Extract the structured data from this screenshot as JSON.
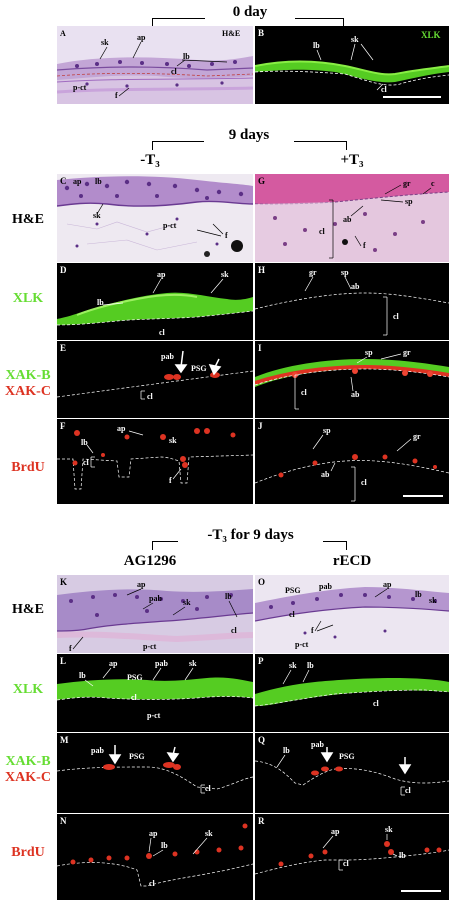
{
  "titles": {
    "day0": "0 day",
    "nine_days": "9 days",
    "minus_t3_9": "-T₃ for 9 days"
  },
  "column_heads": {
    "minus_t3": "-T₃",
    "plus_t3": "+T₃",
    "ag1296": "AG1296",
    "recd": "rECD"
  },
  "row_labels": {
    "he": "H&E",
    "xlk": "XLK",
    "xak_b": "XAK-B",
    "xak_c": "XAK-C",
    "brdu": "BrdU"
  },
  "colors": {
    "xlk": "#66dd33",
    "xak_c": "#dd3322",
    "brdu": "#dd3322",
    "he_bg": "#e6dcef",
    "dark_bg": "#000000"
  },
  "panels": {
    "A": {
      "letter": "A",
      "tag": "H&E",
      "labels": [
        "sk",
        "ap",
        "lb",
        "cl",
        "p-ct",
        "f"
      ]
    },
    "B": {
      "letter": "B",
      "tag": "XLK",
      "labels": [
        "lb",
        "sk",
        "cl"
      ]
    },
    "C": {
      "letter": "C",
      "labels": [
        "ap",
        "lb",
        "sk",
        "p-ct",
        "f"
      ]
    },
    "D": {
      "letter": "D",
      "labels": [
        "ap",
        "sk",
        "lb",
        "cl"
      ]
    },
    "E": {
      "letter": "E",
      "labels": [
        "pab",
        "PSG",
        "cl"
      ]
    },
    "F": {
      "letter": "F",
      "labels": [
        "ap",
        "lb",
        "cl",
        "sk",
        "f"
      ]
    },
    "G": {
      "letter": "G",
      "labels": [
        "gr",
        "c",
        "sp",
        "ab",
        "cl",
        "f"
      ]
    },
    "H": {
      "letter": "H",
      "labels": [
        "gr",
        "sp",
        "ab",
        "cl"
      ]
    },
    "I": {
      "letter": "I",
      "labels": [
        "sp",
        "gr",
        "cl",
        "ab"
      ]
    },
    "J": {
      "letter": "J",
      "labels": [
        "sp",
        "gr",
        "ab",
        "cl"
      ]
    },
    "K": {
      "letter": "K",
      "labels": [
        "ap",
        "pab",
        "sk",
        "lb",
        "cl",
        "f",
        "p-ct"
      ]
    },
    "L": {
      "letter": "L",
      "labels": [
        "ap",
        "lb",
        "PSG",
        "cl",
        "pab",
        "sk",
        "p-ct"
      ]
    },
    "M": {
      "letter": "M",
      "labels": [
        "pab",
        "PSG",
        "cl"
      ]
    },
    "N": {
      "letter": "N",
      "labels": [
        "ap",
        "lb",
        "sk",
        "cl"
      ]
    },
    "O": {
      "letter": "O",
      "labels": [
        "PSG",
        "pab",
        "ap",
        "lb",
        "sk",
        "cl",
        "f",
        "p-ct"
      ]
    },
    "P": {
      "letter": "P",
      "labels": [
        "sk",
        "lb",
        "cl"
      ]
    },
    "Q": {
      "letter": "Q",
      "labels": [
        "lb",
        "pab",
        "PSG",
        "cl"
      ]
    },
    "R": {
      "letter": "R",
      "labels": [
        "ap",
        "sk",
        "cl",
        "lb"
      ]
    }
  }
}
